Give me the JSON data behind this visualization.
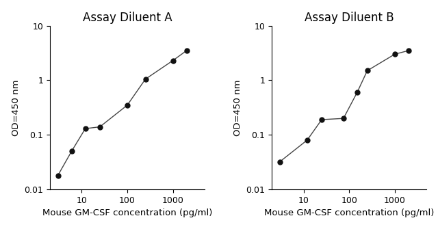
{
  "panel_A": {
    "title": "Assay Diluent A",
    "x": [
      3,
      6,
      12,
      25,
      100,
      250,
      1000,
      2000
    ],
    "y": [
      0.018,
      0.05,
      0.13,
      0.14,
      0.35,
      1.05,
      2.3,
      3.5
    ]
  },
  "panel_B": {
    "title": "Assay Diluent B",
    "x": [
      3,
      12,
      25,
      75,
      150,
      250,
      1000,
      2000
    ],
    "y": [
      0.032,
      0.08,
      0.19,
      0.2,
      0.6,
      1.5,
      3.0,
      3.5
    ]
  },
  "xlabel": "Mouse GM-CSF concentration (pg/ml)",
  "ylabel": "OD=450 nm",
  "xlim": [
    2,
    5000
  ],
  "ylim": [
    0.01,
    10
  ],
  "xticks": [
    10,
    100,
    1000
  ],
  "yticks": [
    0.01,
    0.1,
    1,
    10
  ],
  "line_color": "#444444",
  "marker": "o",
  "markersize": 5,
  "markercolor": "#111111",
  "background_color": "#ffffff",
  "title_fontsize": 12,
  "label_fontsize": 9.5,
  "tick_fontsize": 9
}
